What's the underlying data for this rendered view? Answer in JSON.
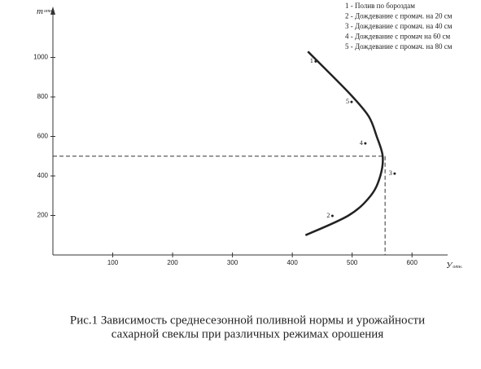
{
  "chart_data": {
    "type": "line",
    "y_label": {
      "main": "m",
      "sub": "отн."
    },
    "x_label": {
      "main": "У",
      "sub": "отн."
    },
    "xlim": [
      0,
      650
    ],
    "ylim": [
      0,
      1200
    ],
    "xticks": [
      100,
      200,
      300,
      400,
      500,
      600
    ],
    "yticks": [
      200,
      400,
      600,
      800,
      1000
    ],
    "series": [
      {
        "color": "#222222",
        "x": [
          426,
          469,
          501,
          528,
          541,
          551,
          547,
          531,
          494,
          422
        ],
        "values": [
          1030,
          900,
          800,
          700,
          600,
          500,
          400,
          300,
          200,
          100
        ]
      }
    ],
    "guide": {
      "x": 555,
      "y": 500
    },
    "points": [
      {
        "label": "1",
        "x": 439,
        "y": 980
      },
      {
        "label": "5",
        "x": 499,
        "y": 775
      },
      {
        "label": "4",
        "x": 522,
        "y": 565
      },
      {
        "label": "3",
        "x": 571,
        "y": 412
      },
      {
        "label": "2",
        "x": 467,
        "y": 198
      }
    ],
    "legend": [
      "1 - Полив по бороздам",
      "2 - Дождевание с промач. на 20 см",
      "3 - Дождевание с промач. на 40 см",
      "4 - Дождевание с промач на 60 см",
      "5 - Дождевание с промач. на 80 см"
    ],
    "caption": [
      "Рис.1 Зависимость среднесезонной поливной нормы и урожайности",
      "сахарной свеклы при различных режимах орошения"
    ]
  }
}
